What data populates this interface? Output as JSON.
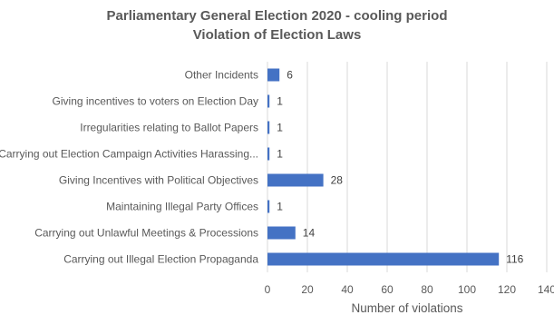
{
  "chart_data": {
    "type": "bar",
    "orientation": "horizontal",
    "title": "Parliamentary General Election 2020 - cooling period",
    "subtitle": "Violation of Election Laws",
    "categories": [
      "Other Incidents",
      "Giving incentives to voters on Election Day",
      "Irregularities relating to Ballot Papers",
      "Carrying out Election Campaign Activities Harassing...",
      "Giving Incentives with Political Objectives",
      "Maintaining Illegal Party Offices",
      "Carrying out Unlawful Meetings & Processions",
      "Carrying out Illegal Election Propaganda"
    ],
    "values": [
      6,
      1,
      1,
      1,
      28,
      1,
      14,
      116
    ],
    "xlabel": "Number of violations",
    "xlim": [
      0,
      140
    ],
    "xticks": [
      0,
      20,
      40,
      60,
      80,
      100,
      120,
      140
    ],
    "xtick_labels": [
      "0",
      "20",
      "40",
      "60",
      "80",
      "100",
      "120",
      "140"
    ],
    "grid": true,
    "legend": "none",
    "bar_color": "#4472C4",
    "grid_color": "#d9d9d9"
  }
}
